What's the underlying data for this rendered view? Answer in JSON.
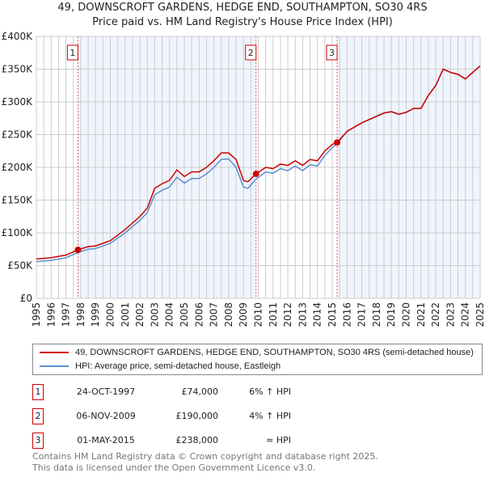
{
  "chart_data": {
    "type": "line",
    "title": "49, DOWNSCROFT GARDENS, HEDGE END, SOUTHAMPTON, SO30 4RS",
    "subtitle": "Price paid vs. HM Land Registry's House Price Index (HPI)",
    "xlim": [
      1995,
      2025
    ],
    "ylim": [
      0,
      400000
    ],
    "x_ticks": [
      "1995",
      "1996",
      "1997",
      "1998",
      "1999",
      "2000",
      "2001",
      "2002",
      "2003",
      "2004",
      "2005",
      "2006",
      "2007",
      "2008",
      "2009",
      "2010",
      "2011",
      "2012",
      "2013",
      "2014",
      "2015",
      "2016",
      "2017",
      "2018",
      "2019",
      "2020",
      "2021",
      "2022",
      "2023",
      "2024",
      "2025"
    ],
    "y_ticks": [
      {
        "v": 0,
        "label": "£0"
      },
      {
        "v": 50000,
        "label": "£50K"
      },
      {
        "v": 100000,
        "label": "£100K"
      },
      {
        "v": 150000,
        "label": "£150K"
      },
      {
        "v": 200000,
        "label": "£200K"
      },
      {
        "v": 250000,
        "label": "£250K"
      },
      {
        "v": 300000,
        "label": "£300K"
      },
      {
        "v": 350000,
        "label": "£350K"
      },
      {
        "v": 400000,
        "label": "£400K"
      }
    ],
    "grid": true,
    "series": [
      {
        "name": "49, DOWNSCROFT GARDENS, HEDGE END, SOUTHAMPTON, SO30 4RS (semi-detached house)",
        "color": "#cc0000",
        "x": [
          1995,
          1996,
          1997,
          1997.8,
          1998.5,
          1999,
          2000,
          2001,
          2002,
          2002.5,
          2003,
          2003.5,
          2004,
          2004.5,
          2005,
          2005.5,
          2006,
          2006.5,
          2007,
          2007.5,
          2008,
          2008.5,
          2009,
          2009.3,
          2009.85,
          2010.5,
          2011,
          2011.5,
          2012,
          2012.5,
          2013,
          2013.5,
          2014,
          2014.5,
          2015,
          2015.33,
          2016,
          2017,
          2018,
          2018.5,
          2019,
          2019.5,
          2020,
          2020.5,
          2021,
          2021.5,
          2022,
          2022.5,
          2023,
          2023.5,
          2024,
          2025
        ],
        "y": [
          60000,
          62000,
          66000,
          74000,
          79000,
          80000,
          88000,
          105000,
          125000,
          138000,
          168000,
          175000,
          180000,
          196000,
          186000,
          193000,
          193000,
          200000,
          210000,
          222000,
          222000,
          212000,
          180000,
          178000,
          190000,
          200000,
          198000,
          205000,
          203000,
          210000,
          203000,
          212000,
          210000,
          225000,
          235000,
          238000,
          255000,
          268000,
          278000,
          283000,
          285000,
          281000,
          284000,
          290000,
          290000,
          310000,
          325000,
          350000,
          345000,
          342000,
          335000,
          355000
        ]
      },
      {
        "name": "HPI: Average price, semi-detached house, Eastleigh",
        "color": "#5b8fd0",
        "x": [
          1995,
          1996,
          1997,
          1997.8,
          1998.5,
          1999,
          2000,
          2001,
          2002,
          2002.5,
          2003,
          2003.5,
          2004,
          2004.5,
          2005,
          2005.5,
          2006,
          2006.5,
          2007,
          2007.5,
          2008,
          2008.5,
          2009,
          2009.3,
          2009.85,
          2010.5,
          2011,
          2011.5,
          2012,
          2012.5,
          2013,
          2013.5,
          2014,
          2014.5,
          2015,
          2015.33,
          2016,
          2017,
          2018,
          2018.5,
          2019,
          2019.5,
          2020,
          2020.5,
          2021,
          2021.5,
          2022,
          2022.5,
          2023,
          2023.5,
          2024,
          2025
        ],
        "y": [
          56000,
          58000,
          62000,
          70000,
          75000,
          76000,
          84000,
          100000,
          119000,
          131000,
          158000,
          165000,
          170000,
          185000,
          176000,
          183000,
          183000,
          190000,
          200000,
          212000,
          213000,
          200000,
          170000,
          168000,
          182000,
          193000,
          191000,
          198000,
          195000,
          202000,
          195000,
          204000,
          202000,
          218000,
          230000,
          236000,
          255000,
          268000,
          278000,
          283000,
          285000,
          281000,
          284000,
          290000,
          290000,
          310000,
          325000,
          350000,
          345000,
          342000,
          335000,
          355000
        ]
      }
    ],
    "sales": [
      {
        "n": "1",
        "x": 1997.81,
        "y": 74000,
        "date": "24-OCT-1997",
        "price": "£74,000",
        "hpi": "6% ↑ HPI"
      },
      {
        "n": "2",
        "x": 2009.85,
        "y": 190000,
        "date": "06-NOV-2009",
        "price": "£190,000",
        "hpi": "4% ↑ HPI"
      },
      {
        "n": "3",
        "x": 2015.33,
        "y": 238000,
        "date": "01-MAY-2015",
        "price": "£238,000",
        "hpi": "≈ HPI"
      }
    ],
    "legend_placement": "bottom"
  },
  "footer": {
    "line1": "Contains HM Land Registry data © Crown copyright and database right 2025.",
    "line2": "This data is licensed under the Open Government Licence v3.0."
  }
}
